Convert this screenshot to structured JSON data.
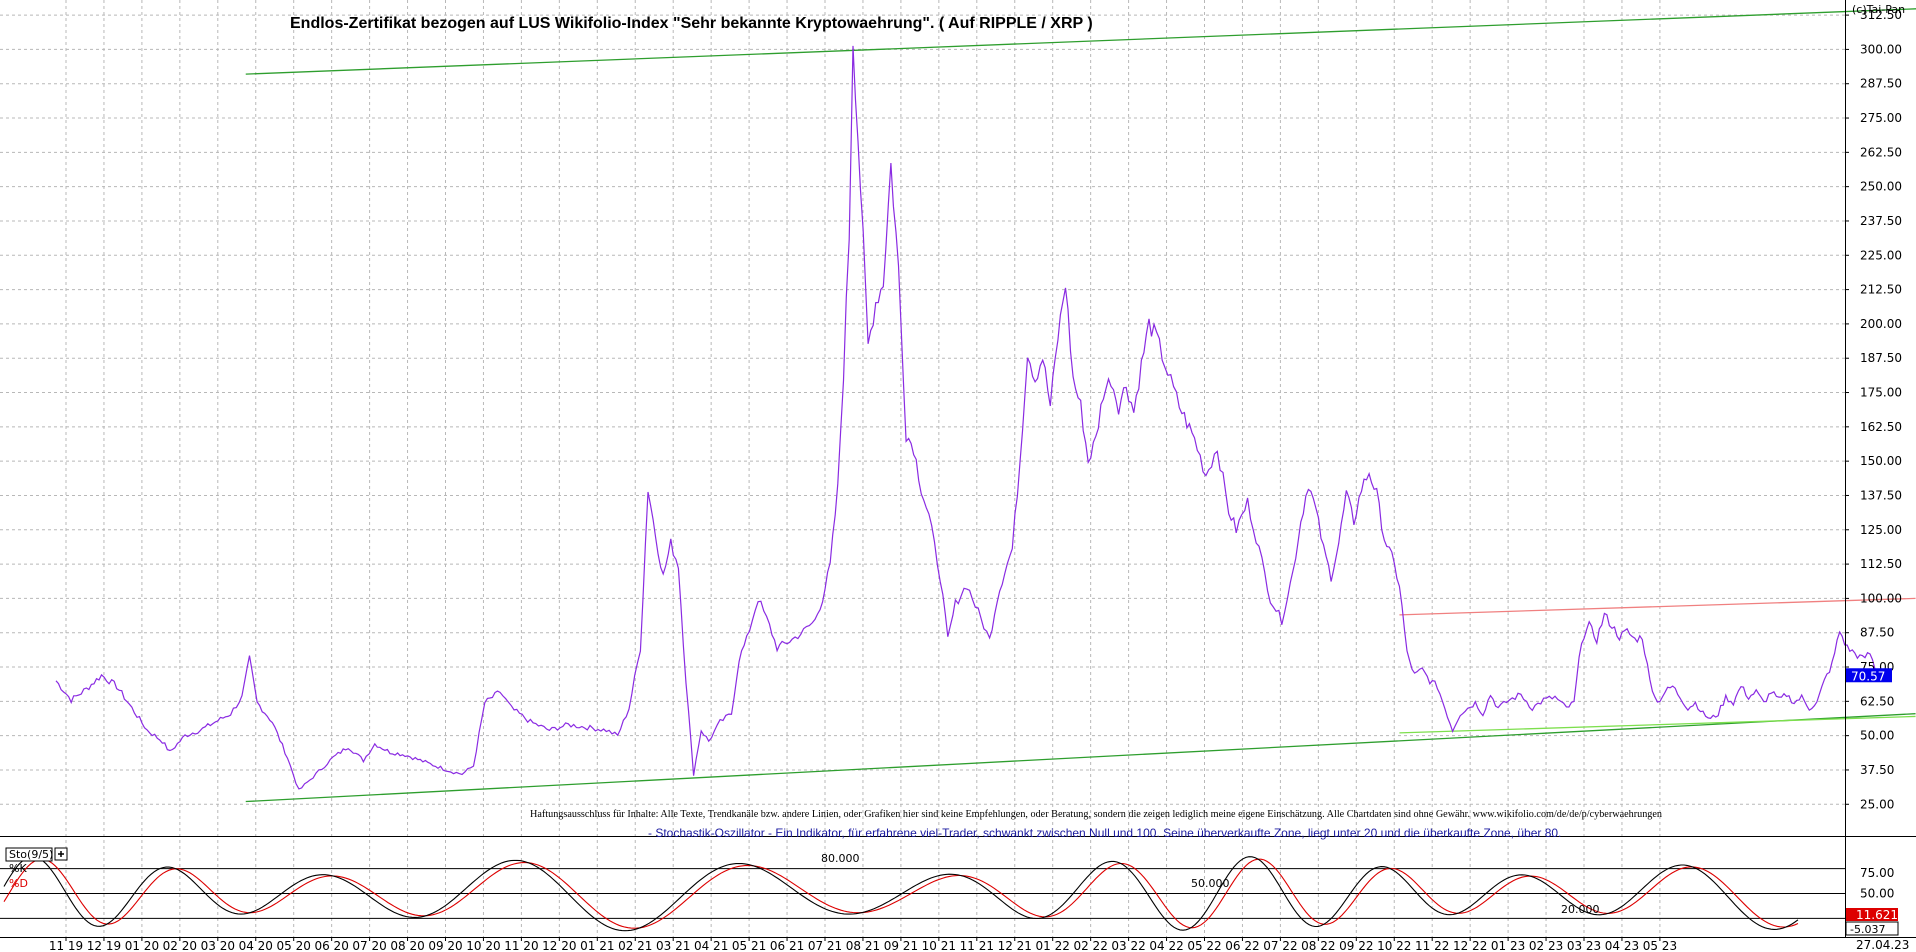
{
  "header": {
    "title": "Endlos-Zertifikat bezogen auf LUS Wikifolio-Index \"Sehr bekannte Kryptowaehrung\". ( Auf RIPPLE / XRP )",
    "copyright": "(c)Tai-Pan"
  },
  "disclaimer": "Haftungsausschluss für Inhalte: Alle Texte, Trendkanäle bzw. andere Linien, oder Grafiken hier sind keine Empfehlungen, oder Beratung, sondern die zeigen lediglich meine eigene Einschätzung. Alle Chartdaten sind ohne Gewähr. www.wikifolio.com/de/de/p/cyberwaehrungen",
  "indicator_description": "- Stochastik-Oszillator - Ein Indikator, für erfahrene viel-Trader, schwankt zwischen Null und 100. Seine überverkaufte Zone, liegt unter 20 und die überkaufte Zone, über 80.",
  "oscillator": {
    "label": "Sto(9/5)",
    "k_label": "%K",
    "d_label": "%D",
    "level_80_text": "80.000",
    "level_50_text": "50.000",
    "level_20_text": "20.000",
    "y_ticks": [
      "75.00",
      "50.00",
      "25.00"
    ],
    "value_d": "11.621",
    "value_k": "-5.037",
    "colors": {
      "k": "#000000",
      "d": "#dd0000",
      "badge": "#dd0000"
    }
  },
  "price_badge": {
    "text": "70.57",
    "color": "#0000ee"
  },
  "last_date": "27.04.23",
  "chart_data": {
    "type": "line",
    "title": "Endlos-Zertifikat bezogen auf LUS Wikifolio-Index \"Sehr bekannte Kryptowaehrung\". ( Auf RIPPLE / XRP )",
    "ylim": [
      20,
      318
    ],
    "y_ticks": [
      "312.50",
      "300.00",
      "287.50",
      "275.00",
      "262.50",
      "250.00",
      "237.50",
      "225.00",
      "212.50",
      "200.00",
      "187.50",
      "175.00",
      "162.50",
      "150.00",
      "137.50",
      "125.00",
      "112.50",
      "100.00",
      "87.50",
      "75.00",
      "62.50",
      "50.00",
      "37.50",
      "25.00"
    ],
    "x_ticks": [
      "11:19",
      "12:19",
      "01:20",
      "02:20",
      "03:20",
      "04:20",
      "05:20",
      "06:20",
      "07:20",
      "08:20",
      "09:20",
      "10:20",
      "11:20",
      "12:20",
      "01:21",
      "02:21",
      "03:21",
      "04:21",
      "05:21",
      "06:21",
      "07:21",
      "08:21",
      "09:21",
      "10:21",
      "11:21",
      "12:21",
      "01:22",
      "02:22",
      "03:22",
      "04:22",
      "05:22",
      "06:22",
      "07:22",
      "08:22",
      "09:22",
      "10:22",
      "11:22",
      "12:22",
      "01:23",
      "02:23",
      "03:23",
      "04:23",
      "05:23"
    ],
    "grid": true,
    "series": [
      {
        "color": "#8a2be2",
        "points": [
          [
            0,
            70
          ],
          [
            0.4,
            63
          ],
          [
            0.8,
            67
          ],
          [
            1.2,
            72
          ],
          [
            1.6,
            68
          ],
          [
            2.0,
            60
          ],
          [
            2.4,
            52
          ],
          [
            2.8,
            48
          ],
          [
            3.0,
            44
          ],
          [
            3.4,
            50
          ],
          [
            3.8,
            52
          ],
          [
            4.2,
            55
          ],
          [
            4.6,
            58
          ],
          [
            4.9,
            64
          ],
          [
            5.1,
            78
          ],
          [
            5.3,
            62
          ],
          [
            5.7,
            55
          ],
          [
            6.1,
            42
          ],
          [
            6.4,
            30
          ],
          [
            6.7,
            34
          ],
          [
            7.0,
            38
          ],
          [
            7.3,
            42
          ],
          [
            7.7,
            46
          ],
          [
            8.1,
            41
          ],
          [
            8.4,
            47
          ],
          [
            8.8,
            44
          ],
          [
            9.2,
            43
          ],
          [
            9.6,
            41
          ],
          [
            10.0,
            39
          ],
          [
            10.4,
            37
          ],
          [
            10.7,
            36
          ],
          [
            11.0,
            39
          ],
          [
            11.3,
            62
          ],
          [
            11.7,
            66
          ],
          [
            12.0,
            60
          ],
          [
            12.5,
            55
          ],
          [
            13.0,
            52
          ],
          [
            13.5,
            54
          ],
          [
            14.0,
            53
          ],
          [
            14.5,
            52
          ],
          [
            14.8,
            50
          ],
          [
            15.1,
            60
          ],
          [
            15.4,
            82
          ],
          [
            15.6,
            140
          ],
          [
            15.8,
            123
          ],
          [
            16.0,
            108
          ],
          [
            16.2,
            120
          ],
          [
            16.4,
            112
          ],
          [
            16.6,
            70
          ],
          [
            16.8,
            36
          ],
          [
            17.0,
            52
          ],
          [
            17.2,
            48
          ],
          [
            17.5,
            55
          ],
          [
            17.8,
            58
          ],
          [
            18.0,
            78
          ],
          [
            18.2,
            85
          ],
          [
            18.5,
            100
          ],
          [
            18.8,
            90
          ],
          [
            19.0,
            82
          ],
          [
            19.4,
            85
          ],
          [
            19.7,
            88
          ],
          [
            20.0,
            92
          ],
          [
            20.2,
            100
          ],
          [
            20.4,
            112
          ],
          [
            20.6,
            140
          ],
          [
            20.75,
            182
          ],
          [
            20.9,
            232
          ],
          [
            21.0,
            304
          ],
          [
            21.2,
            250
          ],
          [
            21.4,
            192
          ],
          [
            21.6,
            208
          ],
          [
            21.8,
            215
          ],
          [
            22.0,
            258
          ],
          [
            22.2,
            220
          ],
          [
            22.4,
            160
          ],
          [
            22.6,
            155
          ],
          [
            22.8,
            140
          ],
          [
            23.0,
            130
          ],
          [
            23.3,
            108
          ],
          [
            23.5,
            85
          ],
          [
            23.7,
            98
          ],
          [
            24.0,
            105
          ],
          [
            24.3,
            95
          ],
          [
            24.6,
            85
          ],
          [
            24.8,
            100
          ],
          [
            25.0,
            110
          ],
          [
            25.2,
            118
          ],
          [
            25.4,
            150
          ],
          [
            25.6,
            190
          ],
          [
            25.8,
            180
          ],
          [
            26.0,
            188
          ],
          [
            26.2,
            170
          ],
          [
            26.4,
            195
          ],
          [
            26.6,
            215
          ],
          [
            26.8,
            180
          ],
          [
            27.0,
            170
          ],
          [
            27.2,
            150
          ],
          [
            27.4,
            158
          ],
          [
            27.6,
            175
          ],
          [
            27.8,
            180
          ],
          [
            28.0,
            170
          ],
          [
            28.2,
            178
          ],
          [
            28.4,
            168
          ],
          [
            28.6,
            185
          ],
          [
            28.8,
            200
          ],
          [
            29.0,
            195
          ],
          [
            29.3,
            182
          ],
          [
            29.6,
            170
          ],
          [
            30.0,
            158
          ],
          [
            30.3,
            145
          ],
          [
            30.6,
            155
          ],
          [
            30.9,
            132
          ],
          [
            31.1,
            125
          ],
          [
            31.4,
            135
          ],
          [
            31.7,
            118
          ],
          [
            32.0,
            100
          ],
          [
            32.3,
            92
          ],
          [
            32.6,
            110
          ],
          [
            32.8,
            128
          ],
          [
            33.0,
            142
          ],
          [
            33.2,
            132
          ],
          [
            33.4,
            118
          ],
          [
            33.6,
            108
          ],
          [
            33.8,
            120
          ],
          [
            34.0,
            138
          ],
          [
            34.2,
            128
          ],
          [
            34.4,
            140
          ],
          [
            34.6,
            146
          ],
          [
            34.8,
            138
          ],
          [
            35.0,
            122
          ],
          [
            35.2,
            115
          ],
          [
            35.4,
            105
          ],
          [
            35.6,
            80
          ],
          [
            35.8,
            72
          ],
          [
            36.0,
            74
          ],
          [
            36.2,
            70
          ],
          [
            36.4,
            68
          ],
          [
            36.6,
            60
          ],
          [
            36.8,
            52
          ],
          [
            37.0,
            58
          ],
          [
            37.2,
            60
          ],
          [
            37.4,
            62
          ],
          [
            37.6,
            58
          ],
          [
            37.8,
            65
          ],
          [
            38.0,
            60
          ],
          [
            38.3,
            63
          ],
          [
            38.6,
            65
          ],
          [
            38.9,
            60
          ],
          [
            39.2,
            63
          ],
          [
            39.5,
            64
          ],
          [
            39.8,
            60
          ],
          [
            40.0,
            62
          ],
          [
            40.2,
            85
          ],
          [
            40.4,
            90
          ],
          [
            40.6,
            85
          ],
          [
            40.8,
            94
          ],
          [
            41.0,
            90
          ],
          [
            41.2,
            86
          ],
          [
            41.4,
            88
          ],
          [
            41.6,
            85
          ],
          [
            41.8,
            86
          ],
          [
            42.0,
            70
          ],
          [
            42.2,
            62
          ],
          [
            42.4,
            66
          ],
          [
            42.6,
            68
          ],
          [
            42.8,
            64
          ],
          [
            43.0,
            60
          ],
          [
            43.2,
            62
          ],
          [
            43.4,
            58
          ],
          [
            43.6,
            56
          ],
          [
            43.8,
            58
          ],
          [
            44.0,
            64
          ],
          [
            44.2,
            62
          ],
          [
            44.4,
            68
          ],
          [
            44.6,
            64
          ],
          [
            44.8,
            66
          ],
          [
            45.0,
            62
          ],
          [
            45.2,
            66
          ],
          [
            45.4,
            63
          ],
          [
            45.6,
            65
          ],
          [
            45.8,
            62
          ],
          [
            46.0,
            64
          ],
          [
            46.2,
            60
          ],
          [
            46.4,
            62
          ],
          [
            46.6,
            70
          ],
          [
            46.8,
            76
          ],
          [
            47.0,
            88
          ],
          [
            47.2,
            82
          ],
          [
            47.4,
            80
          ],
          [
            47.6,
            78
          ],
          [
            47.8,
            80
          ],
          [
            48.0,
            72
          ]
        ]
      }
    ],
    "trendlines": [
      {
        "color": "#2e9e2e",
        "from": [
          5.0,
          291
        ],
        "to": [
          49.4,
          315
        ]
      },
      {
        "color": "#2e9e2e",
        "from": [
          5.0,
          26
        ],
        "to": [
          49.0,
          58
        ]
      },
      {
        "color": "#f08080",
        "from": [
          35.4,
          94
        ],
        "to": [
          49.0,
          100
        ]
      },
      {
        "color": "#7ddf4d",
        "from": [
          35.4,
          51
        ],
        "to": [
          49.0,
          57
        ]
      }
    ]
  }
}
